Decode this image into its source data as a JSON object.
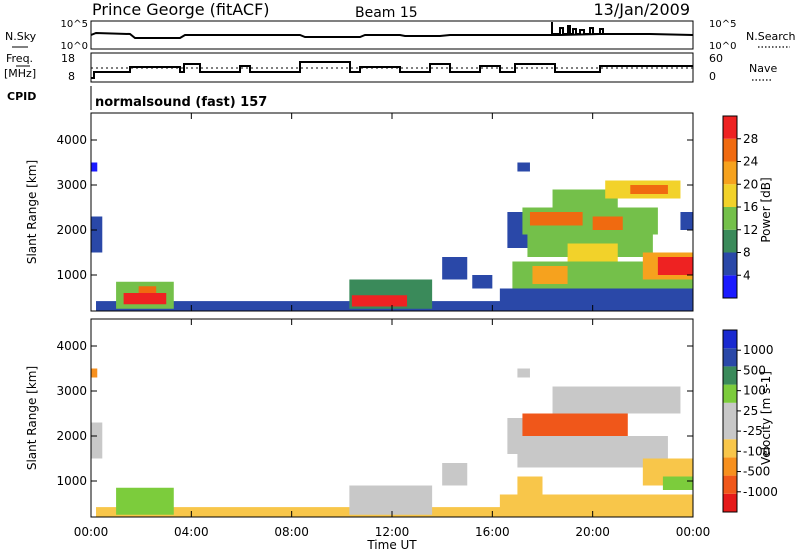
{
  "header": {
    "station": "Prince George (fitACF)",
    "beam": "Beam 15",
    "date": "13/Jan/2009"
  },
  "panels": {
    "nsky_label": "N.Sky",
    "nsearch_label": "N.Search",
    "nsky_ticks": [
      "10^5",
      "10^0"
    ],
    "nsearch_ticks": [
      "10^5",
      "10^0"
    ],
    "freq_label_1": "Freq.",
    "freq_label_2": "[MHz]",
    "freq_ticks": [
      "18",
      "8"
    ],
    "nave_label": "Nave",
    "nave_ticks": [
      "60",
      "0"
    ],
    "cpid_label": "CPID",
    "cpid_text": "normalsound (fast) 157"
  },
  "colors": {
    "power": [
      "#1a1aff",
      "#2a48a8",
      "#3a8a5a",
      "#74c04a",
      "#f2d22a",
      "#f6a21e",
      "#f06a10",
      "#ee2222"
    ],
    "velocity": [
      "#e51a1a",
      "#f0571a",
      "#f7901e",
      "#f8c64a",
      "#c8c8c8",
      "#c8c8c8",
      "#7ccc3c",
      "#3a8a5a",
      "#2a48a8",
      "#1a2ad0"
    ]
  },
  "power_colorbar": {
    "ticks": [
      "28",
      "24",
      "20",
      "16",
      "12",
      "8",
      "4"
    ],
    "label": "Power [dB]"
  },
  "velocity_colorbar": {
    "ticks": [
      "1000",
      "500",
      "100",
      "25",
      "-25",
      "-100",
      "-500",
      "-1000"
    ],
    "label": "Velocity [m s-1]"
  },
  "chart_data": [
    {
      "type": "heatmap",
      "quantity": "Power",
      "ylabel": "Slant Range [km]",
      "xlabel": "Time UT",
      "ylim": [
        200,
        4600
      ],
      "xlim": [
        0,
        24
      ],
      "yticks": [
        "1000",
        "2000",
        "3000",
        "4000"
      ],
      "xticks": [
        "00:00",
        "04:00",
        "08:00",
        "12:00",
        "16:00",
        "20:00",
        "00:00"
      ],
      "regions": [
        {
          "t0": 0.0,
          "t1": 0.45,
          "r0": 1500,
          "r1": 2300,
          "level": 1
        },
        {
          "t0": 0.0,
          "t1": 0.25,
          "r0": 3300,
          "r1": 3500,
          "level": 0
        },
        {
          "t0": 0.2,
          "t1": 24.0,
          "r0": 180,
          "r1": 420,
          "level": 1
        },
        {
          "t0": 1.0,
          "t1": 3.3,
          "r0": 250,
          "r1": 850,
          "level": 3
        },
        {
          "t0": 1.3,
          "t1": 3.0,
          "r0": 350,
          "r1": 600,
          "level": 7
        },
        {
          "t0": 1.9,
          "t1": 2.6,
          "r0": 600,
          "r1": 750,
          "level": 6
        },
        {
          "t0": 10.3,
          "t1": 13.6,
          "r0": 250,
          "r1": 900,
          "level": 2
        },
        {
          "t0": 10.4,
          "t1": 12.6,
          "r0": 300,
          "r1": 550,
          "level": 7
        },
        {
          "t0": 14.0,
          "t1": 15.0,
          "r0": 900,
          "r1": 1400,
          "level": 1
        },
        {
          "t0": 15.2,
          "t1": 16.0,
          "r0": 700,
          "r1": 1000,
          "level": 1
        },
        {
          "t0": 17.0,
          "t1": 17.5,
          "r0": 3300,
          "r1": 3500,
          "level": 1
        },
        {
          "t0": 16.3,
          "t1": 24.0,
          "r0": 300,
          "r1": 700,
          "level": 1
        },
        {
          "t0": 16.6,
          "t1": 18.0,
          "r0": 1600,
          "r1": 2400,
          "level": 1
        },
        {
          "t0": 16.8,
          "t1": 24.0,
          "r0": 700,
          "r1": 1300,
          "level": 3
        },
        {
          "t0": 17.6,
          "t1": 19.0,
          "r0": 800,
          "r1": 1200,
          "level": 5
        },
        {
          "t0": 17.4,
          "t1": 22.4,
          "r0": 1400,
          "r1": 1900,
          "level": 3
        },
        {
          "t0": 19.0,
          "t1": 21.0,
          "r0": 1300,
          "r1": 1700,
          "level": 4
        },
        {
          "t0": 17.2,
          "t1": 22.6,
          "r0": 1900,
          "r1": 2500,
          "level": 3
        },
        {
          "t0": 17.5,
          "t1": 19.6,
          "r0": 2100,
          "r1": 2400,
          "level": 6
        },
        {
          "t0": 20.0,
          "t1": 21.2,
          "r0": 2000,
          "r1": 2300,
          "level": 6
        },
        {
          "t0": 18.4,
          "t1": 21.0,
          "r0": 2500,
          "r1": 2900,
          "level": 3
        },
        {
          "t0": 20.5,
          "t1": 23.5,
          "r0": 2700,
          "r1": 3100,
          "level": 4
        },
        {
          "t0": 21.5,
          "t1": 23.0,
          "r0": 2800,
          "r1": 3000,
          "level": 6
        },
        {
          "t0": 22.0,
          "t1": 24.0,
          "r0": 900,
          "r1": 1500,
          "level": 5
        },
        {
          "t0": 22.6,
          "t1": 24.0,
          "r0": 1000,
          "r1": 1400,
          "level": 7
        },
        {
          "t0": 23.5,
          "t1": 24.0,
          "r0": 2000,
          "r1": 2400,
          "level": 1
        }
      ]
    },
    {
      "type": "heatmap",
      "quantity": "Velocity",
      "ylabel": "Slant Range [km]",
      "xlabel": "Time UT",
      "ylim": [
        200,
        4600
      ],
      "xlim": [
        0,
        24
      ],
      "yticks": [
        "1000",
        "2000",
        "3000",
        "4000"
      ],
      "xticks": [
        "00:00",
        "04:00",
        "08:00",
        "12:00",
        "16:00",
        "20:00",
        "00:00"
      ],
      "regions": [
        {
          "t0": 0.0,
          "t1": 0.45,
          "r0": 1500,
          "r1": 2300,
          "level": 4
        },
        {
          "t0": 0.0,
          "t1": 0.25,
          "r0": 3300,
          "r1": 3500,
          "level": 2
        },
        {
          "t0": 0.2,
          "t1": 24.0,
          "r0": 180,
          "r1": 420,
          "level": 3
        },
        {
          "t0": 1.0,
          "t1": 3.3,
          "r0": 250,
          "r1": 850,
          "level": 6
        },
        {
          "t0": 10.3,
          "t1": 13.6,
          "r0": 250,
          "r1": 900,
          "level": 4
        },
        {
          "t0": 14.0,
          "t1": 15.0,
          "r0": 900,
          "r1": 1400,
          "level": 4
        },
        {
          "t0": 17.0,
          "t1": 17.5,
          "r0": 3300,
          "r1": 3500,
          "level": 4
        },
        {
          "t0": 16.3,
          "t1": 24.0,
          "r0": 300,
          "r1": 700,
          "level": 3
        },
        {
          "t0": 16.6,
          "t1": 18.0,
          "r0": 1600,
          "r1": 2400,
          "level": 4
        },
        {
          "t0": 17.0,
          "t1": 23.0,
          "r0": 1300,
          "r1": 2000,
          "level": 4
        },
        {
          "t0": 17.2,
          "t1": 21.4,
          "r0": 2000,
          "r1": 2500,
          "level": 1
        },
        {
          "t0": 18.4,
          "t1": 23.5,
          "r0": 2500,
          "r1": 3100,
          "level": 4
        },
        {
          "t0": 17.0,
          "t1": 18.0,
          "r0": 700,
          "r1": 1100,
          "level": 3
        },
        {
          "t0": 22.0,
          "t1": 24.0,
          "r0": 900,
          "r1": 1500,
          "level": 3
        },
        {
          "t0": 22.8,
          "t1": 24.0,
          "r0": 800,
          "r1": 1100,
          "level": 6
        }
      ]
    }
  ]
}
